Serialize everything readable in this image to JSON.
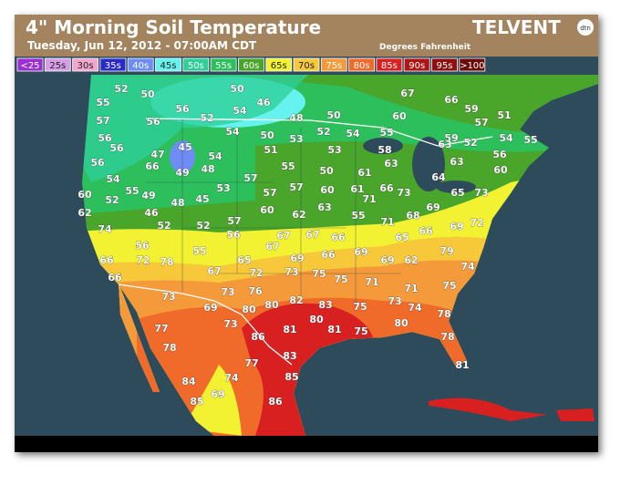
{
  "header": {
    "title": "4\" Morning Soil Temperature",
    "subtitle": "Tuesday, Jun 12, 2012 - 07:00AM CDT",
    "units": "Degrees Fahrenheit",
    "logo": "TELVENT",
    "logo_badge": "dtn"
  },
  "legend": [
    {
      "label": "<25",
      "color": "#9b30d0"
    },
    {
      "label": "25s",
      "color": "#d79ee6"
    },
    {
      "label": "30s",
      "color": "#f4a6cf"
    },
    {
      "label": "35s",
      "color": "#2a2ac8"
    },
    {
      "label": "40s",
      "color": "#6f8cf5"
    },
    {
      "label": "45s",
      "color": "#66f2ee"
    },
    {
      "label": "50s",
      "color": "#2fcf98"
    },
    {
      "label": "55s",
      "color": "#2cbf5c"
    },
    {
      "label": "60s",
      "color": "#4aa62a"
    },
    {
      "label": "65s",
      "color": "#f2f232"
    },
    {
      "label": "70s",
      "color": "#f7c93a"
    },
    {
      "label": "75s",
      "color": "#f59a3a"
    },
    {
      "label": "80s",
      "color": "#f06a2a"
    },
    {
      "label": "85s",
      "color": "#d82020"
    },
    {
      "label": "90s",
      "color": "#b01515"
    },
    {
      "label": "95s",
      "color": "#8f1010"
    },
    {
      "label": ">100",
      "color": "#6a0c0c"
    }
  ],
  "map_labels": [
    55,
    52,
    50,
    50,
    46,
    54,
    48,
    50,
    67,
    66,
    59,
    57,
    51,
    57,
    56,
    52,
    56,
    60,
    56,
    45,
    54,
    50,
    53,
    52,
    54,
    55,
    59,
    52,
    54,
    55,
    56,
    47,
    54,
    51,
    53,
    58,
    63,
    56,
    56,
    66,
    49,
    48,
    55,
    63,
    63,
    54,
    57,
    50,
    61,
    64,
    60,
    55,
    49,
    48,
    53,
    57,
    57,
    60,
    61,
    66,
    73,
    65,
    73,
    60,
    52,
    45,
    71,
    62,
    46,
    60,
    62,
    63,
    55,
    71,
    68,
    69,
    69,
    72,
    52,
    52,
    57,
    74,
    56,
    67,
    67,
    67,
    66,
    65,
    66,
    56,
    55,
    69,
    66,
    69,
    79,
    66,
    72,
    78,
    65,
    69,
    62,
    74,
    66,
    73,
    67,
    72,
    73,
    75,
    75,
    75,
    71,
    71,
    73,
    76,
    82,
    83,
    73,
    69,
    80,
    80,
    75,
    74,
    78,
    77,
    73,
    81,
    80,
    81,
    75,
    80,
    78,
    86,
    83,
    78,
    77,
    81,
    84,
    74,
    85,
    85,
    69,
    86
  ]
}
